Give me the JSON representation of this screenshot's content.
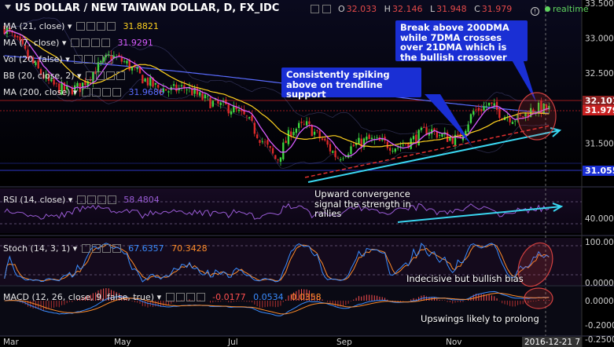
{
  "header": {
    "title": "US DOLLAR / NEW TAIWAN DOLLAR, D, FX_IDC",
    "ohlc": [
      {
        "key": "O",
        "value": "32.033"
      },
      {
        "key": "H",
        "value": "32.146"
      },
      {
        "key": "L",
        "value": "31.948"
      },
      {
        "key": "C",
        "value": "31.979"
      }
    ],
    "realtime_label": "realtime"
  },
  "indicators": [
    {
      "label": "MA (21, close)",
      "value": "31.8821",
      "color": "#ffd21f"
    },
    {
      "label": "MA (7, close)",
      "value": "31.9291",
      "color": "#d85cff"
    },
    {
      "label": "Vol (20, false)",
      "value": "",
      "color": "#dddddd"
    },
    {
      "label": "BB (20, close, 2)",
      "value": "",
      "color": "#dddddd"
    },
    {
      "label": "MA (200, close)",
      "value": "31.9686",
      "color": "#5a6cff"
    }
  ],
  "rsi_panel": {
    "label": "RSI (14, close)",
    "value": "58.4804",
    "value_color": "#9a5cd6"
  },
  "stoch_panel": {
    "label": "Stoch (14, 3, 1)",
    "value_k": "67.6357",
    "value_d": "70.3428",
    "k_color": "#3a8cff",
    "d_color": "#ff8c2a"
  },
  "macd_panel": {
    "label": "MACD (12, 26, close, 9, false, true)",
    "values": [
      "-0.0177",
      "0.0534",
      "0.0358"
    ],
    "value_colors": [
      "#ff5050",
      "#3a8cff",
      "#ff8c2a"
    ]
  },
  "callouts": [
    "Break above 200DMA while 7DMA crosses over 21DMA which is the bullish crossover",
    "Consistently spiking above on trendline support"
  ],
  "notes": [
    "Upward convergence signal the strength in rallies",
    "Indecisive but bullish bias",
    "Upswings likely to prolong"
  ],
  "price_tags": [
    {
      "value": "32.101",
      "bg": "#8a1f1f",
      "fg": "#ffffff"
    },
    {
      "value": "31.979",
      "bg": "#c82020",
      "fg": "#ffffff"
    },
    {
      "value": "31.055",
      "bg": "#1a2fd4",
      "fg": "#ffffff"
    }
  ],
  "chart_data": {
    "type": "candlestick",
    "symbol": "USDTWD",
    "timeframe": "D",
    "x_ticks": [
      "Mar",
      "May",
      "Jul",
      "Sep",
      "Nov",
      "2016-12-21 7"
    ],
    "price_axis": {
      "ylim": [
        30.9,
        33.5
      ],
      "ticks": [
        "33.500",
        "33.000",
        "32.500",
        "31.500"
      ]
    },
    "rsi_axis": {
      "ylim": [
        20,
        80
      ],
      "ticks": [
        "40.0000"
      ]
    },
    "stoch_axis": {
      "ylim": [
        0,
        100
      ],
      "ticks": [
        "100.0000",
        "0.0000"
      ]
    },
    "macd_axis": {
      "ticks": [
        "0.0000",
        "-0.2000",
        "-0.2500"
      ]
    },
    "close_series_approx": [
      33.15,
      32.9,
      32.6,
      32.35,
      32.25,
      32.3,
      32.55,
      32.75,
      32.65,
      32.45,
      32.3,
      32.25,
      32.3,
      32.15,
      32.05,
      32.0,
      31.85,
      31.55,
      31.25,
      31.7,
      31.75,
      31.55,
      31.3,
      31.45,
      31.55,
      31.5,
      31.45,
      31.55,
      31.7,
      31.6,
      31.55,
      31.95,
      32.05,
      31.9,
      31.85,
      32.0,
      31.98
    ],
    "trendline": {
      "from": 31.05,
      "to": 31.8
    }
  }
}
